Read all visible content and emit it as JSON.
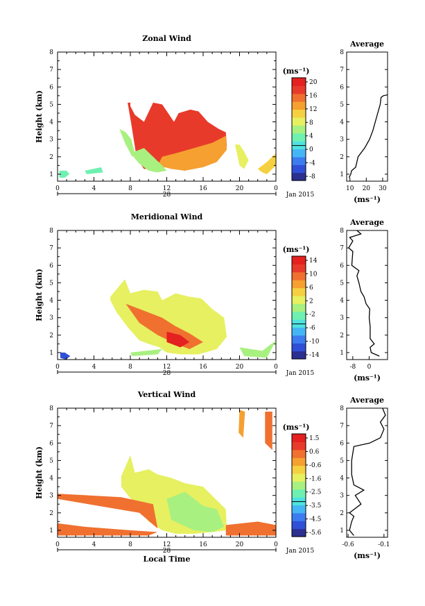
{
  "chart_data": [
    {
      "type": "heatmap",
      "title": "Zonal Wind",
      "xlabel": "",
      "ylabel": "Height (km)",
      "xlim": [
        0,
        24
      ],
      "ylim": [
        0.6,
        8.0
      ],
      "x_ticks": [
        "0",
        "4",
        "8",
        "12",
        "16",
        "20",
        "0"
      ],
      "y_ticks": [
        "1",
        "2",
        "3",
        "4",
        "5",
        "6",
        "7",
        "8"
      ],
      "date_label": "28",
      "date_suffix": "Jan 2015",
      "colorbar": {
        "unit": "(ms⁻¹)",
        "range": [
          -10,
          22
        ],
        "ticks": [
          "20",
          "16",
          "12",
          "8",
          "4",
          "0",
          "-4",
          "-8"
        ],
        "colors": [
          "#2b2f8f",
          "#2f4fd6",
          "#3d7cf0",
          "#45b6f5",
          "#4fe3e0",
          "#6ef0b0",
          "#a8f080",
          "#e6f060",
          "#f5d040",
          "#f5a030",
          "#f07030",
          "#e83a2a",
          "#e42020"
        ]
      },
      "blobs": [
        {
          "x": [
            7.7,
            8.0,
            8.0,
            8.5,
            9.5,
            10.5,
            11.5,
            12.8,
            13.3,
            14.6,
            15.5,
            16.5,
            17.7,
            18.5,
            18.6,
            17.0,
            15.5,
            14.0,
            13.0,
            12.0,
            11.0,
            10.2,
            9.5,
            8.7,
            8.1
          ],
          "y": [
            5.1,
            5.1,
            4.9,
            4.4,
            4.0,
            5.1,
            5.0,
            4.0,
            4.5,
            4.7,
            4.6,
            4.0,
            3.6,
            3.4,
            2.6,
            1.9,
            1.5,
            1.2,
            1.3,
            1.4,
            1.4,
            1.3,
            1.3,
            1.9,
            3.9
          ],
          "v": 19
        },
        {
          "x": [
            11.5,
            13.0,
            15.0,
            17.0,
            18.5,
            18.6,
            17.5,
            16.0,
            14.0,
            12.5,
            11.0
          ],
          "y": [
            2.0,
            2.2,
            2.5,
            2.8,
            3.2,
            2.4,
            1.7,
            1.4,
            1.2,
            1.3,
            1.5
          ],
          "v": 14
        },
        {
          "x": [
            8.0,
            9.5,
            10.5,
            11.5,
            12.0,
            11.0,
            10.0,
            9.0
          ],
          "y": [
            2.2,
            2.5,
            2.0,
            1.5,
            1.2,
            1.1,
            1.2,
            1.6
          ],
          "v": 7
        },
        {
          "x": [
            6.8,
            7.5,
            8.1,
            8.5,
            8.2,
            7.4
          ],
          "y": [
            3.6,
            3.4,
            3.0,
            2.2,
            2.0,
            2.8
          ],
          "v": 6
        },
        {
          "x": [
            19.5,
            20.0,
            20.5,
            21.0,
            20.5,
            20.0
          ],
          "y": [
            2.7,
            2.7,
            2.3,
            1.8,
            1.3,
            1.5
          ],
          "v": 9
        },
        {
          "x": [
            22.0,
            23.0,
            24.0,
            24.0,
            23.0,
            22.5
          ],
          "y": [
            1.3,
            1.7,
            2.2,
            1.5,
            1.0,
            1.1
          ],
          "v": 10
        },
        {
          "x": [
            0.2,
            1.0,
            1.3,
            0.8,
            0.2
          ],
          "y": [
            1.2,
            1.2,
            1.0,
            0.8,
            0.8
          ],
          "v": 3
        },
        {
          "x": [
            3.0,
            4.8,
            5.0,
            3.2
          ],
          "y": [
            1.2,
            1.4,
            1.1,
            1.0
          ],
          "v": 3
        }
      ],
      "profile": {
        "xlabel": "(ms⁻¹)",
        "title": "Average",
        "xlim": [
          8,
          33
        ],
        "x_ticks": [
          "10",
          "20",
          "30"
        ],
        "x_tick_values": [
          10,
          20,
          30
        ],
        "points": [
          [
            9.5,
            0.8
          ],
          [
            10.5,
            1.0
          ],
          [
            11.0,
            1.2
          ],
          [
            13.5,
            1.4
          ],
          [
            15.0,
            2.0
          ],
          [
            19.0,
            2.5
          ],
          [
            22.0,
            3.0
          ],
          [
            24.0,
            3.5
          ],
          [
            25.5,
            4.0
          ],
          [
            27.0,
            4.5
          ],
          [
            28.5,
            5.0
          ],
          [
            29.0,
            5.4
          ],
          [
            30.5,
            5.5
          ],
          [
            33.0,
            5.55
          ]
        ]
      }
    },
    {
      "type": "heatmap",
      "title": "Meridional Wind",
      "xlabel": "",
      "ylabel": "Height (km)",
      "xlim": [
        0,
        24
      ],
      "ylim": [
        0.6,
        8.0
      ],
      "x_ticks": [
        "0",
        "4",
        "8",
        "12",
        "16",
        "20",
        "0"
      ],
      "y_ticks": [
        "1",
        "2",
        "3",
        "4",
        "5",
        "6",
        "7",
        "8"
      ],
      "date_label": "28",
      "date_suffix": "Jan 2015",
      "colorbar": {
        "unit": "(ms⁻¹)",
        "range": [
          -16,
          16
        ],
        "ticks": [
          "14",
          "10",
          "6",
          "2",
          "-2",
          "-6",
          "-10",
          "-14"
        ],
        "colors": [
          "#2b2f8f",
          "#2f4fd6",
          "#3d7cf0",
          "#45b6f5",
          "#4fe3e0",
          "#6ef0b0",
          "#a8f080",
          "#e6f060",
          "#f5d040",
          "#f5a030",
          "#f07030",
          "#e83a2a",
          "#e42020"
        ]
      },
      "blobs": [
        {
          "x": [
            5.8,
            7.4,
            8.0,
            9.5,
            11.0,
            11.5,
            13.0,
            14.5,
            15.8,
            17.0,
            18.3,
            18.6,
            17.5,
            15.5,
            13.5,
            12.0,
            11.2,
            10.0,
            9.0,
            7.8,
            6.5,
            5.8
          ],
          "y": [
            4.2,
            5.2,
            4.4,
            4.6,
            4.5,
            4.0,
            4.4,
            4.2,
            4.1,
            3.5,
            3.0,
            1.9,
            1.2,
            0.9,
            0.9,
            1.0,
            1.3,
            1.5,
            1.7,
            2.4,
            3.3,
            4.0
          ],
          "v": 3
        },
        {
          "x": [
            7.5,
            9.5,
            11.5,
            13.0,
            14.5,
            16.0,
            14.5,
            13.0,
            11.0,
            9.0
          ],
          "y": [
            3.8,
            3.4,
            3.0,
            2.5,
            2.1,
            1.6,
            1.2,
            1.5,
            2.0,
            2.7
          ],
          "v": 10
        },
        {
          "x": [
            12.0,
            13.5,
            14.5,
            13.5,
            12.0
          ],
          "y": [
            2.2,
            2.0,
            1.6,
            1.3,
            1.6
          ],
          "v": 14
        },
        {
          "x": [
            0.3,
            0.8,
            1.4,
            0.9,
            0.3
          ],
          "y": [
            1.0,
            1.0,
            0.8,
            0.6,
            0.7
          ],
          "v": -12
        },
        {
          "x": [
            8.0,
            11.5,
            11.0,
            8.2
          ],
          "y": [
            1.0,
            1.2,
            0.9,
            0.8
          ],
          "v": -1
        },
        {
          "x": [
            20.0,
            22.5,
            24.0,
            23.0,
            20.5
          ],
          "y": [
            1.3,
            1.1,
            1.7,
            0.7,
            0.8
          ],
          "v": -1
        }
      ],
      "profile": {
        "xlabel": "(ms⁻¹)",
        "title": "Average",
        "xlim": [
          -11,
          9
        ],
        "x_ticks": [
          "-8",
          "0"
        ],
        "x_tick_values": [
          -8,
          0
        ],
        "points": [
          [
            5.0,
            0.8
          ],
          [
            1.0,
            1.0
          ],
          [
            0.5,
            1.3
          ],
          [
            2.5,
            1.5
          ],
          [
            0.5,
            1.8
          ],
          [
            0.5,
            2.5
          ],
          [
            0.0,
            3.0
          ],
          [
            0.3,
            3.5
          ],
          [
            -1.5,
            3.8
          ],
          [
            -2.5,
            4.2
          ],
          [
            -4.0,
            4.5
          ],
          [
            -5.0,
            5.0
          ],
          [
            -6.0,
            5.4
          ],
          [
            -5.0,
            5.7
          ],
          [
            -8.5,
            6.0
          ],
          [
            -8.0,
            6.8
          ],
          [
            -10.0,
            7.0
          ],
          [
            -8.0,
            7.4
          ],
          [
            -9.5,
            7.6
          ],
          [
            -4.0,
            7.8
          ],
          [
            -6.0,
            8.0
          ]
        ]
      }
    },
    {
      "type": "heatmap",
      "title": "Vertical Wind",
      "xlabel": "Local Time",
      "ylabel": "Height (km)",
      "xlim": [
        0,
        24
      ],
      "ylim": [
        0.6,
        8.0
      ],
      "x_ticks": [
        "0",
        "4",
        "8",
        "12",
        "16",
        "20",
        "0"
      ],
      "y_ticks": [
        "1",
        "2",
        "3",
        "4",
        "5",
        "6",
        "7",
        "8"
      ],
      "date_label": "28",
      "date_suffix": "Jan 2015",
      "colorbar": {
        "unit": "(ms⁻¹)",
        "range": [
          -6.0,
          2.0
        ],
        "ticks": [
          "1.5",
          "0.6",
          "-0.6",
          "-1.6",
          "-2.5",
          "-3.5",
          "-4.5",
          "-5.6"
        ],
        "colors": [
          "#2b2f8f",
          "#2f4fd6",
          "#3d7cf0",
          "#45b6f5",
          "#4fe3e0",
          "#6ef0b0",
          "#a8f080",
          "#e6f060",
          "#f5d040",
          "#f5a030",
          "#f07030",
          "#e83a2a",
          "#e42020"
        ]
      },
      "blobs": [
        {
          "x": [
            7.0,
            8.0,
            8.5,
            10.0,
            11.0,
            12.5,
            14.0,
            16.0,
            18.5,
            18.6,
            17.0,
            15.0,
            13.0,
            11.5,
            10.0,
            8.5,
            7.0
          ],
          "y": [
            4.1,
            5.3,
            4.3,
            4.5,
            4.2,
            4.0,
            3.7,
            3.5,
            2.2,
            1.0,
            0.9,
            0.8,
            0.8,
            1.0,
            1.5,
            2.5,
            3.5
          ],
          "v": -1.2
        },
        {
          "x": [
            12.0,
            14.0,
            16.0,
            17.5,
            18.3,
            17.0,
            15.0,
            12.5
          ],
          "y": [
            2.8,
            3.2,
            2.4,
            2.2,
            1.2,
            0.9,
            1.0,
            1.6
          ],
          "v": -2.2
        },
        {
          "x": [
            0.0,
            7.0,
            10.5,
            11.0,
            9.0,
            0.0
          ],
          "y": [
            3.1,
            2.9,
            2.5,
            1.1,
            2.0,
            2.8
          ],
          "v": 0.2
        },
        {
          "x": [
            0.0,
            3.0,
            8.0,
            11.0,
            10.0,
            0.0
          ],
          "y": [
            1.4,
            1.2,
            1.0,
            0.9,
            0.7,
            0.7
          ],
          "v": 0.4
        },
        {
          "x": [
            18.5,
            22.0,
            24.0,
            24.0,
            18.5
          ],
          "y": [
            1.3,
            1.5,
            1.3,
            0.7,
            0.7
          ],
          "v": 0.2
        },
        {
          "x": [
            20.0,
            20.6,
            20.4,
            19.9
          ],
          "y": [
            7.9,
            7.8,
            6.3,
            6.6
          ],
          "v": 0.1
        },
        {
          "x": [
            22.8,
            23.6,
            23.6,
            22.8
          ],
          "y": [
            7.8,
            7.8,
            5.6,
            6.0
          ],
          "v": 0.3
        }
      ],
      "profile": {
        "xlabel": "(ms⁻¹)",
        "title": "Average",
        "xlim": [
          -0.62,
          -0.05
        ],
        "x_ticks": [
          "-0.6",
          "-0.1"
        ],
        "x_tick_values": [
          -0.6,
          -0.1
        ],
        "points": [
          [
            -0.52,
            0.7
          ],
          [
            -0.58,
            1.0
          ],
          [
            -0.55,
            1.5
          ],
          [
            -0.52,
            1.8
          ],
          [
            -0.58,
            2.0
          ],
          [
            -0.42,
            2.5
          ],
          [
            -0.5,
            3.0
          ],
          [
            -0.38,
            3.3
          ],
          [
            -0.52,
            3.6
          ],
          [
            -0.55,
            4.2
          ],
          [
            -0.55,
            5.0
          ],
          [
            -0.52,
            5.8
          ],
          [
            -0.3,
            6.0
          ],
          [
            -0.15,
            6.3
          ],
          [
            -0.1,
            6.8
          ],
          [
            -0.15,
            7.2
          ],
          [
            -0.08,
            7.6
          ],
          [
            -0.12,
            8.0
          ]
        ]
      }
    }
  ]
}
